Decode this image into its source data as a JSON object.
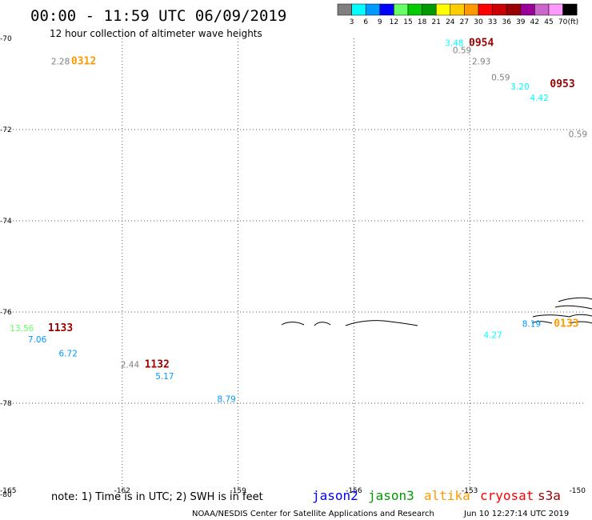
{
  "header": {
    "title": "00:00 - 11:59 UTC 06/09/2019",
    "subtitle": "12 hour collection of altimeter wave heights"
  },
  "legend": {
    "unit_label": "(ft)",
    "bins": [
      {
        "label": "3",
        "color": "#808080"
      },
      {
        "label": "6",
        "color": "#00ffff"
      },
      {
        "label": "9",
        "color": "#0099ff"
      },
      {
        "label": "12",
        "color": "#0000ff"
      },
      {
        "label": "15",
        "color": "#66ff66"
      },
      {
        "label": "18",
        "color": "#00cc00"
      },
      {
        "label": "21",
        "color": "#009900"
      },
      {
        "label": "24",
        "color": "#ffff00"
      },
      {
        "label": "27",
        "color": "#ffcc00"
      },
      {
        "label": "30",
        "color": "#ff9900"
      },
      {
        "label": "33",
        "color": "#ff0000"
      },
      {
        "label": "36",
        "color": "#cc0000"
      },
      {
        "label": "39",
        "color": "#990000"
      },
      {
        "label": "42",
        "color": "#990099"
      },
      {
        "label": "45",
        "color": "#cc66cc"
      },
      {
        "label": "70",
        "color": "#ff99ff"
      },
      {
        "label": "",
        "color": "#000000"
      }
    ]
  },
  "chart_data": {
    "type": "scatter",
    "xlim": [
      -165,
      -150
    ],
    "ylim": [
      -80,
      -70
    ],
    "x_ticks": [
      {
        "value": -165,
        "label": "-165"
      },
      {
        "value": -162,
        "label": "-162"
      },
      {
        "value": -159,
        "label": "-159"
      },
      {
        "value": -156,
        "label": "-156"
      },
      {
        "value": -153,
        "label": "-153"
      },
      {
        "value": -150,
        "label": "-150"
      }
    ],
    "y_ticks": [
      {
        "value": -70,
        "label": "-70"
      },
      {
        "value": -72,
        "label": "-72"
      },
      {
        "value": -74,
        "label": "-74"
      },
      {
        "value": -76,
        "label": "-76"
      },
      {
        "value": -78,
        "label": "-78"
      },
      {
        "value": -80,
        "label": "-80"
      }
    ],
    "grid": true,
    "passes": [
      {
        "label": "0312",
        "color": "#ff9900",
        "x": -163.0,
        "y": -70.5
      },
      {
        "label": "0954",
        "color": "#990000",
        "x": -152.7,
        "y": -70.1
      },
      {
        "label": "0953",
        "color": "#990000",
        "x": -150.6,
        "y": -71.0
      },
      {
        "label": "1133",
        "color": "#990000",
        "x": -163.6,
        "y": -76.35
      },
      {
        "label": "1132",
        "color": "#990000",
        "x": -161.1,
        "y": -77.15
      },
      {
        "label": "0133",
        "color": "#ff9900",
        "x": -150.5,
        "y": -76.25
      }
    ],
    "points": [
      {
        "value": "2.28",
        "color": "#808080",
        "x": -163.6,
        "y": -70.5
      },
      {
        "value": "3.48",
        "color": "#00ffff",
        "x": -153.4,
        "y": -70.1
      },
      {
        "value": "0.59",
        "color": "#808080",
        "x": -153.2,
        "y": -70.25
      },
      {
        "value": "2.93",
        "color": "#808080",
        "x": -152.7,
        "y": -70.5
      },
      {
        "value": "0.59",
        "color": "#808080",
        "x": -152.2,
        "y": -70.85
      },
      {
        "value": "3.20",
        "color": "#00ffff",
        "x": -151.7,
        "y": -71.05
      },
      {
        "value": "4.42",
        "color": "#00ffff",
        "x": -151.2,
        "y": -71.3
      },
      {
        "value": "0.59",
        "color": "#808080",
        "x": -150.2,
        "y": -72.1
      },
      {
        "value": "13.56",
        "color": "#66ff66",
        "x": -164.6,
        "y": -76.35
      },
      {
        "value": "7.06",
        "color": "#0099ff",
        "x": -164.2,
        "y": -76.6
      },
      {
        "value": "6.72",
        "color": "#0099ff",
        "x": -163.4,
        "y": -76.9
      },
      {
        "value": "2.44",
        "color": "#808080",
        "x": -161.8,
        "y": -77.15
      },
      {
        "value": "5.17",
        "color": "#0099ff",
        "x": -160.9,
        "y": -77.4
      },
      {
        "value": "8.79",
        "color": "#0099ff",
        "x": -159.3,
        "y": -77.9
      },
      {
        "value": "8.19",
        "color": "#0099ff",
        "x": -151.4,
        "y": -76.25
      },
      {
        "value": "4.27",
        "color": "#00ffff",
        "x": -152.4,
        "y": -76.5
      }
    ]
  },
  "footer": {
    "note": "note: 1) Time is in UTC; 2) SWH is in feet",
    "satellites": [
      {
        "name": "jason2",
        "color": "#0000ff"
      },
      {
        "name": "jason3",
        "color": "#009900"
      },
      {
        "name": "altika",
        "color": "#ff9900"
      },
      {
        "name": "cryosat",
        "color": "#ff0000"
      },
      {
        "name": "s3a",
        "color": "#990000"
      }
    ],
    "credit": "NOAA/NESDIS Center for Satellite Applications and Research",
    "timestamp": "Jun 10 12:27:14 UTC 2019"
  }
}
